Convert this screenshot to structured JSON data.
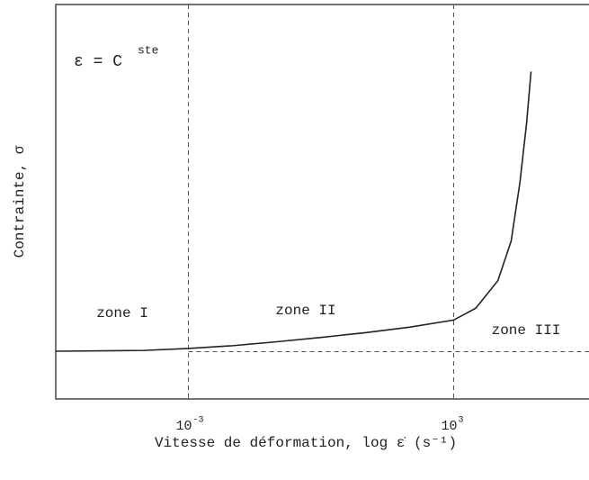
{
  "chart_data": {
    "type": "line",
    "xscale": "log",
    "xlabel": "Vitesse de déformation, log ε̇ (s⁻¹)",
    "ylabel": "Contrainte, σ",
    "annotation": {
      "text": "ε = C",
      "superscript": "ste"
    },
    "zones": [
      "zone I",
      "zone II",
      "zone III"
    ],
    "xlim": [
      1e-06,
      1000000.0
    ],
    "ylim": [
      0,
      100
    ],
    "xticks": [
      {
        "value": 0.001,
        "label": "10",
        "exponent": "-3"
      },
      {
        "value": 1000,
        "label": "10",
        "exponent": "3"
      }
    ],
    "grid": true,
    "reference_y": 12,
    "color": "#222222",
    "x": [
      1e-06,
      0.0001,
      0.001,
      0.01,
      0.1,
      1,
      10,
      100,
      1000,
      3162,
      10000,
      19953,
      31623,
      44668,
      56234
    ],
    "values": [
      12.1,
      12.3,
      12.8,
      13.5,
      14.5,
      15.6,
      16.8,
      18.2,
      20,
      23,
      30,
      40,
      55,
      70,
      83
    ]
  }
}
